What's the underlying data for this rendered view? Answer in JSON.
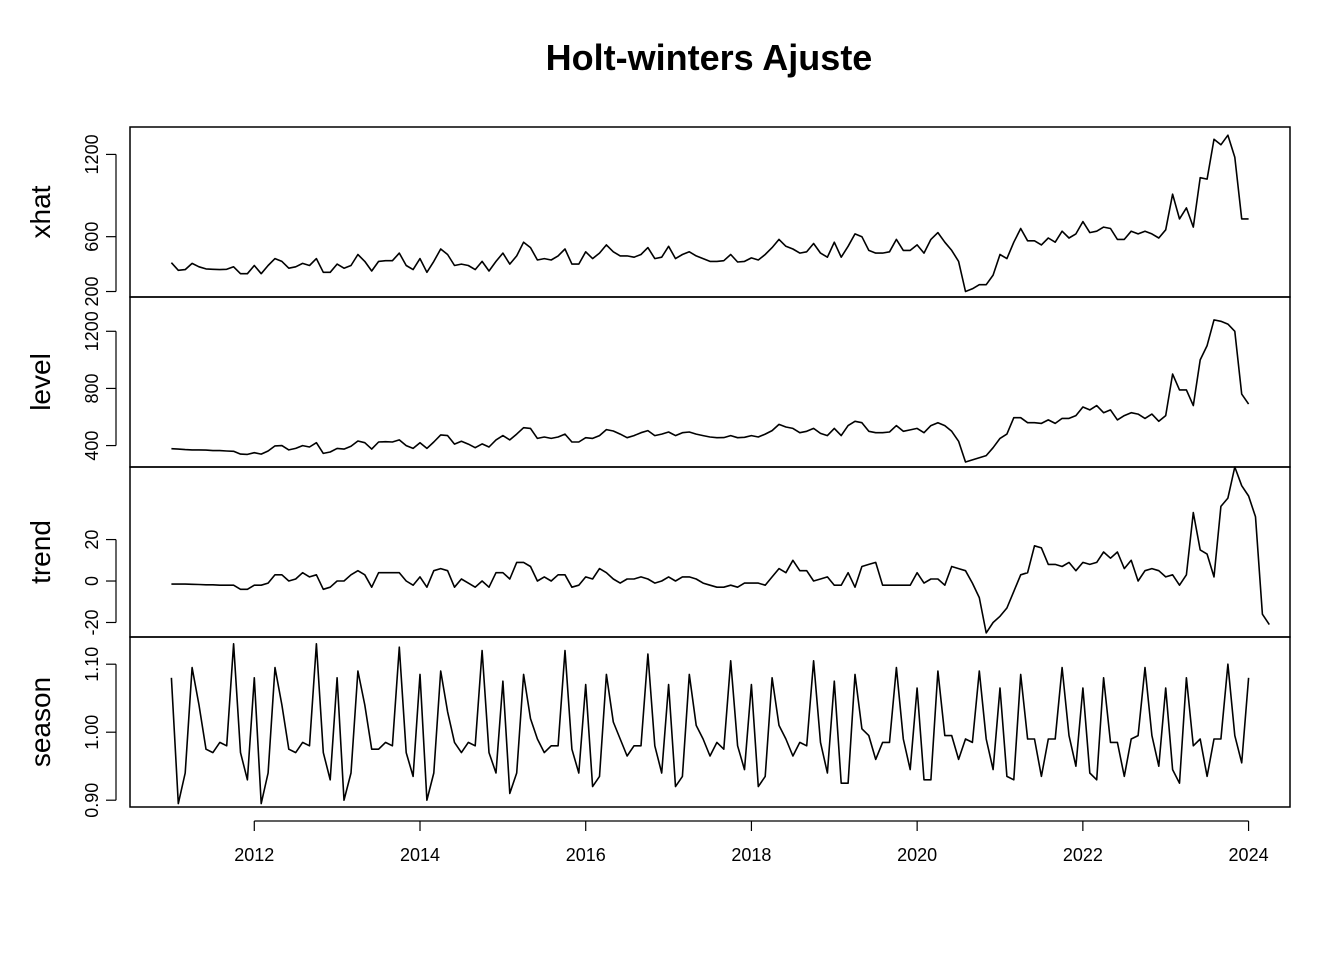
{
  "chart_data": {
    "type": "line",
    "title": "Holt-winters Ajuste",
    "x": {
      "start": 2011.0,
      "step": 0.083333,
      "range": [
        2010.5,
        2024.5
      ],
      "ticks": [
        2012,
        2014,
        2016,
        2018,
        2020,
        2022,
        2024
      ],
      "tick_labels": [
        "2012",
        "2014",
        "2016",
        "2018",
        "2020",
        "2022",
        "2024"
      ]
    },
    "panels": [
      {
        "name": "xhat",
        "ylabel": "xhat",
        "ylim": [
          160,
          1400
        ],
        "ticks": [
          200,
          600,
          1200
        ],
        "tick_labels": [
          "200",
          "600",
          "1200"
        ],
        "values": [
          410,
          355,
          360,
          405,
          380,
          365,
          362,
          360,
          362,
          380,
          330,
          330,
          390,
          330,
          390,
          440,
          420,
          370,
          380,
          405,
          390,
          440,
          340,
          340,
          400,
          370,
          390,
          470,
          420,
          350,
          420,
          425,
          425,
          480,
          390,
          360,
          440,
          340,
          420,
          510,
          470,
          390,
          400,
          390,
          360,
          420,
          350,
          420,
          480,
          400,
          460,
          560,
          520,
          430,
          440,
          430,
          460,
          510,
          400,
          400,
          490,
          440,
          480,
          540,
          490,
          460,
          460,
          450,
          470,
          520,
          440,
          450,
          530,
          440,
          470,
          490,
          460,
          440,
          420,
          420,
          425,
          470,
          415,
          420,
          445,
          430,
          470,
          520,
          580,
          530,
          510,
          480,
          490,
          550,
          480,
          450,
          560,
          450,
          530,
          620,
          600,
          500,
          480,
          480,
          490,
          580,
          500,
          500,
          540,
          480,
          580,
          630,
          560,
          500,
          420,
          200,
          220,
          250,
          250,
          320,
          470,
          440,
          560,
          660,
          570,
          570,
          540,
          590,
          560,
          640,
          590,
          620,
          710,
          630,
          640,
          670,
          660,
          580,
          580,
          640,
          620,
          640,
          620,
          590,
          650,
          910,
          730,
          810,
          670,
          1030,
          1020,
          1310,
          1270,
          1340,
          1180,
          730,
          730
        ]
      },
      {
        "name": "level",
        "ylabel": "level",
        "ylim": [
          250,
          1440
        ],
        "ticks": [
          400,
          800,
          1200
        ],
        "tick_labels": [
          "400",
          "800",
          "1200"
        ],
        "values": [
          378,
          375,
          372,
          370,
          370,
          368,
          365,
          365,
          362,
          360,
          340,
          338,
          350,
          340,
          362,
          398,
          400,
          370,
          380,
          400,
          390,
          420,
          345,
          355,
          380,
          375,
          395,
          432,
          420,
          375,
          425,
          427,
          425,
          440,
          400,
          380,
          420,
          380,
          425,
          475,
          470,
          410,
          430,
          410,
          385,
          412,
          390,
          440,
          470,
          440,
          480,
          525,
          520,
          450,
          460,
          450,
          460,
          480,
          425,
          425,
          455,
          450,
          470,
          512,
          502,
          480,
          455,
          470,
          490,
          505,
          470,
          480,
          495,
          470,
          490,
          495,
          480,
          470,
          460,
          455,
          456,
          470,
          455,
          458,
          470,
          460,
          480,
          505,
          548,
          530,
          520,
          490,
          500,
          520,
          485,
          470,
          520,
          470,
          540,
          570,
          560,
          500,
          490,
          490,
          495,
          540,
          500,
          510,
          520,
          490,
          540,
          560,
          540,
          500,
          430,
          285,
          300,
          315,
          330,
          385,
          450,
          480,
          595,
          595,
          560,
          560,
          555,
          580,
          555,
          590,
          590,
          610,
          670,
          650,
          680,
          630,
          650,
          580,
          610,
          630,
          620,
          590,
          620,
          570,
          610,
          900,
          790,
          790,
          680,
          1000,
          1100,
          1280,
          1270,
          1250,
          1200,
          760,
          690
        ]
      },
      {
        "name": "trend",
        "ylabel": "trend",
        "ylim": [
          -27,
          55
        ],
        "ticks": [
          -20,
          0,
          20
        ],
        "tick_labels": [
          "-20",
          "0",
          "20"
        ],
        "values": [
          -1.5,
          -1.5,
          -1.5,
          -1.6,
          -1.7,
          -1.8,
          -1.8,
          -2,
          -2,
          -2,
          -4,
          -4,
          -2,
          -2,
          -1,
          3,
          3,
          0,
          1,
          4,
          2,
          3,
          -4,
          -3,
          0,
          0,
          3,
          5,
          3,
          -3,
          4,
          4,
          4,
          4,
          0,
          -2,
          2,
          -3,
          5,
          6,
          5,
          -3,
          1,
          -1,
          -3,
          0,
          -3,
          4,
          4,
          1,
          9,
          9,
          7,
          0,
          2,
          0,
          3,
          3,
          -3,
          -2,
          2,
          1,
          6,
          4,
          1,
          -1,
          1,
          1,
          2,
          1,
          -1,
          0,
          2,
          0,
          2,
          2,
          1,
          -1,
          -2,
          -3,
          -3,
          -2,
          -3,
          -1,
          -1,
          -1,
          -2,
          2,
          6,
          4,
          10,
          5,
          5,
          0,
          1,
          2,
          -2,
          -2,
          4,
          -3,
          7,
          8,
          9,
          -2,
          -2,
          -2,
          -2,
          -2,
          4,
          -1,
          1,
          1,
          -2,
          7,
          6,
          5,
          -1,
          -8,
          -25,
          -20,
          -17,
          -13,
          -5,
          3,
          4,
          17,
          16,
          8,
          8,
          7,
          9,
          5,
          9,
          8,
          9,
          14,
          11,
          14,
          6,
          10,
          0,
          5,
          6,
          5,
          2,
          3,
          -2,
          3,
          33,
          15,
          13,
          2,
          36,
          40,
          55,
          46,
          41,
          31,
          -16,
          -21
        ]
      },
      {
        "name": "season",
        "ylabel": "season",
        "ylim": [
          0.89,
          1.14
        ],
        "ticks": [
          0.9,
          1.0,
          1.1
        ],
        "tick_labels": [
          "0.90",
          "1.00",
          "1.10"
        ],
        "values": [
          1.08,
          0.895,
          0.94,
          1.095,
          1.04,
          0.975,
          0.97,
          0.985,
          0.98,
          1.13,
          0.97,
          0.93,
          1.08,
          0.895,
          0.94,
          1.095,
          1.04,
          0.975,
          0.97,
          0.985,
          0.98,
          1.13,
          0.97,
          0.93,
          1.08,
          0.9,
          0.94,
          1.09,
          1.04,
          0.975,
          0.975,
          0.985,
          0.98,
          1.125,
          0.97,
          0.935,
          1.085,
          0.9,
          0.94,
          1.09,
          1.03,
          0.985,
          0.97,
          0.985,
          0.98,
          1.12,
          0.97,
          0.94,
          1.075,
          0.91,
          0.94,
          1.085,
          1.02,
          0.99,
          0.97,
          0.98,
          0.98,
          1.12,
          0.975,
          0.94,
          1.07,
          0.92,
          0.935,
          1.085,
          1.015,
          0.99,
          0.965,
          0.98,
          0.98,
          1.115,
          0.98,
          0.94,
          1.07,
          0.92,
          0.935,
          1.085,
          1.01,
          0.99,
          0.965,
          0.985,
          0.975,
          1.105,
          0.98,
          0.945,
          1.07,
          0.92,
          0.935,
          1.08,
          1.01,
          0.99,
          0.965,
          0.985,
          0.98,
          1.105,
          0.985,
          0.94,
          1.075,
          0.925,
          0.925,
          1.085,
          1.005,
          0.995,
          0.96,
          0.985,
          0.985,
          1.095,
          0.99,
          0.945,
          1.065,
          0.93,
          0.93,
          1.09,
          0.995,
          0.995,
          0.96,
          0.99,
          0.985,
          1.09,
          0.99,
          0.945,
          1.065,
          0.935,
          0.93,
          1.085,
          0.99,
          0.99,
          0.935,
          0.99,
          0.99,
          1.095,
          0.995,
          0.95,
          1.065,
          0.94,
          0.93,
          1.08,
          0.985,
          0.985,
          0.935,
          0.99,
          0.995,
          1.095,
          0.995,
          0.95,
          1.065,
          0.945,
          0.925,
          1.08,
          0.98,
          0.99,
          0.935,
          0.99,
          0.99,
          1.1,
          0.995,
          0.955,
          1.08
        ]
      }
    ]
  }
}
